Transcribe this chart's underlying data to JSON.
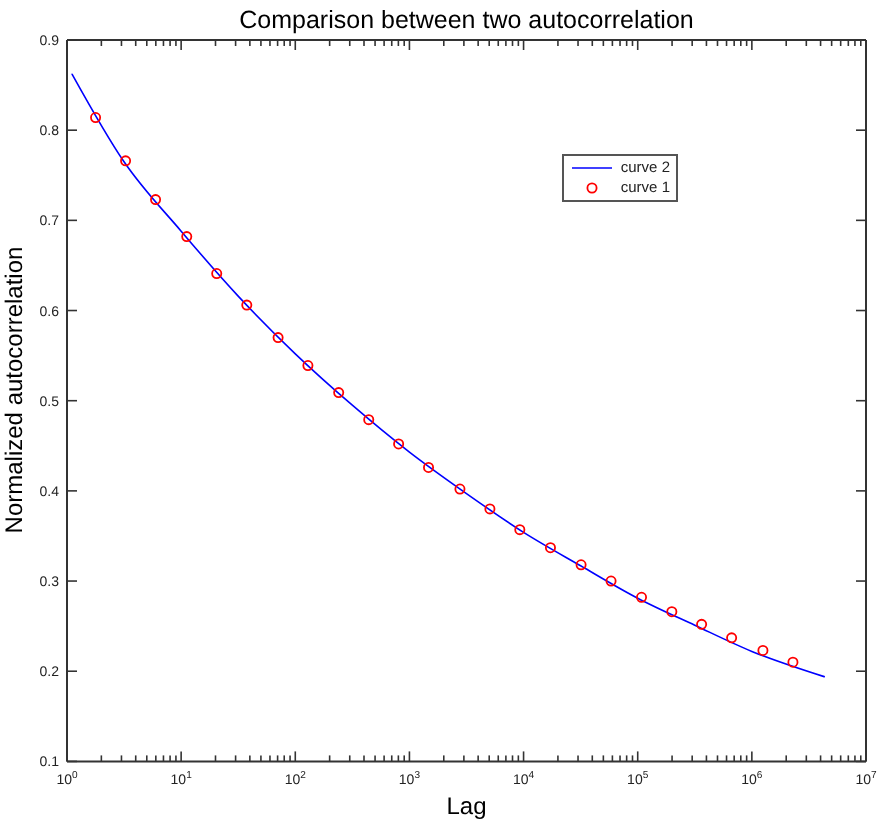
{
  "chart_data": {
    "type": "line",
    "title": "Comparison between two autocorrelation",
    "xlabel": "Lag",
    "ylabel": "Normalized autocorrelation",
    "log": "x",
    "legend": "top right",
    "xlim": [
      1,
      10000000
    ],
    "xticks": [
      {
        "value": 1,
        "label": "10$^{0}$"
      },
      {
        "value": 2,
        "label": null
      },
      {
        "value": 3,
        "label": null
      },
      {
        "value": 4,
        "label": null
      },
      {
        "value": 5,
        "label": null
      },
      {
        "value": 6,
        "label": null
      },
      {
        "value": 7,
        "label": null
      },
      {
        "value": 8,
        "label": null
      },
      {
        "value": 9,
        "label": null
      },
      {
        "value": 10,
        "label": "10$^{1}$"
      },
      {
        "value": 20,
        "label": null
      },
      {
        "value": 30,
        "label": null
      },
      {
        "value": 40,
        "label": null
      },
      {
        "value": 50,
        "label": null
      },
      {
        "value": 60,
        "label": null
      },
      {
        "value": 70,
        "label": null
      },
      {
        "value": 80,
        "label": null
      },
      {
        "value": 90,
        "label": null
      },
      {
        "value": 100,
        "label": "10$^{2}$"
      },
      {
        "value": 200,
        "label": null
      },
      {
        "value": 300,
        "label": null
      },
      {
        "value": 400,
        "label": null
      },
      {
        "value": 500,
        "label": null
      },
      {
        "value": 600,
        "label": null
      },
      {
        "value": 700,
        "label": null
      },
      {
        "value": 800,
        "label": null
      },
      {
        "value": 900,
        "label": null
      },
      {
        "value": 1000,
        "label": "10$^{3}$"
      },
      {
        "value": 2000,
        "label": null
      },
      {
        "value": 3000,
        "label": null
      },
      {
        "value": 4000,
        "label": null
      },
      {
        "value": 5000,
        "label": null
      },
      {
        "value": 6000,
        "label": null
      },
      {
        "value": 7000,
        "label": null
      },
      {
        "value": 8000,
        "label": null
      },
      {
        "value": 9000,
        "label": null
      },
      {
        "value": 10000,
        "label": "10$^{4}$"
      },
      {
        "value": 20000,
        "label": null
      },
      {
        "value": 30000,
        "label": null
      },
      {
        "value": 40000,
        "label": null
      },
      {
        "value": 50000,
        "label": null
      },
      {
        "value": 60000,
        "label": null
      },
      {
        "value": 70000,
        "label": null
      },
      {
        "value": 80000,
        "label": null
      },
      {
        "value": 90000,
        "label": null
      },
      {
        "value": 100000,
        "label": "10$^{5}$"
      },
      {
        "value": 200000,
        "label": null
      },
      {
        "value": 300000,
        "label": null
      },
      {
        "value": 400000,
        "label": null
      },
      {
        "value": 500000,
        "label": null
      },
      {
        "value": 600000,
        "label": null
      },
      {
        "value": 700000,
        "label": null
      },
      {
        "value": 800000,
        "label": null
      },
      {
        "value": 900000,
        "label": null
      },
      {
        "value": 1000000,
        "label": "10$^{6}$"
      },
      {
        "value": 2000000,
        "label": null
      },
      {
        "value": 3000000,
        "label": null
      },
      {
        "value": 4000000,
        "label": null
      },
      {
        "value": 5000000,
        "label": null
      },
      {
        "value": 6000000,
        "label": null
      },
      {
        "value": 7000000,
        "label": null
      },
      {
        "value": 8000000,
        "label": null
      },
      {
        "value": 9000000,
        "label": null
      },
      {
        "value": 10000000,
        "label": "10$^{7}$"
      }
    ],
    "ylim": [
      0.1,
      0.9
    ],
    "yticks": [
      0.1,
      0.2,
      0.3,
      0.4,
      0.5,
      0.6,
      0.7,
      0.8,
      0.9
    ],
    "series": [
      {
        "name": "curve 2",
        "color": "#0000ff",
        "marker": "none",
        "line_style": "solid",
        "x": [
          1.11,
          3.16,
          10,
          31.6,
          100,
          316,
          1000,
          3160,
          10000,
          31600,
          100000,
          316000,
          1000000,
          4300000
        ],
        "values": [
          0.862,
          0.765,
          0.688,
          0.616,
          0.552,
          0.495,
          0.443,
          0.397,
          0.354,
          0.317,
          0.281,
          0.251,
          0.222,
          0.194
        ]
      },
      {
        "name": "curve 1",
        "type": "scatter",
        "color": "#ff0000",
        "marker": "circle",
        "x": [
          1.78,
          3.26,
          5.97,
          11.2,
          20.5,
          37.6,
          70.7,
          129,
          240,
          440,
          804,
          1470,
          2770,
          5070,
          9270,
          17200,
          31900,
          58400,
          108000,
          199000,
          363000,
          665000,
          1250000,
          2290000
        ],
        "values": [
          0.814,
          0.766,
          0.723,
          0.682,
          0.641,
          0.606,
          0.57,
          0.539,
          0.509,
          0.479,
          0.452,
          0.426,
          0.402,
          0.38,
          0.357,
          0.337,
          0.318,
          0.3,
          0.282,
          0.266,
          0.252,
          0.237,
          0.223,
          0.21
        ]
      }
    ]
  }
}
